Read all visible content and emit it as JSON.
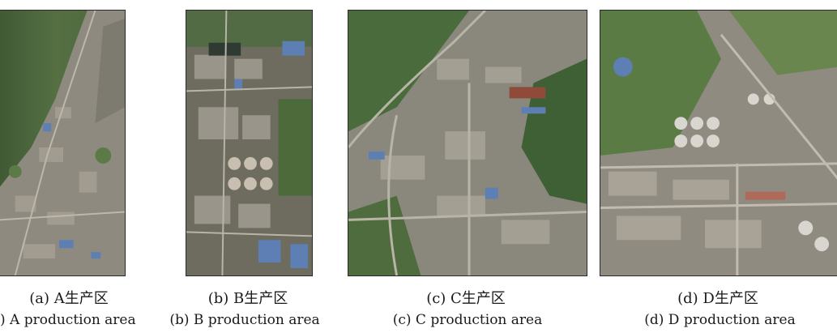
{
  "panels": [
    {
      "caption_zh": "(a) A生产区",
      "caption_en": ") A production area",
      "scene": "industrial-area-a-satellite-image"
    },
    {
      "caption_zh": "(b) B生产区",
      "caption_en": "(b) B production area",
      "scene": "industrial-area-b-satellite-image"
    },
    {
      "caption_zh": "(c) C生产区",
      "caption_en": "(c) C production area",
      "scene": "industrial-area-c-satellite-image"
    },
    {
      "caption_zh": "(d) D生产区",
      "caption_en": "(d) D production area",
      "scene": "industrial-area-d-satellite-image"
    }
  ],
  "colors": {
    "vegetation_dark": "#3f5a34",
    "vegetation_light": "#6e8a55",
    "built_up": "#9b9487",
    "roof_blue": "#5d7fb3",
    "roof_white": "#d8d6cf",
    "road": "#b9b4a8"
  }
}
